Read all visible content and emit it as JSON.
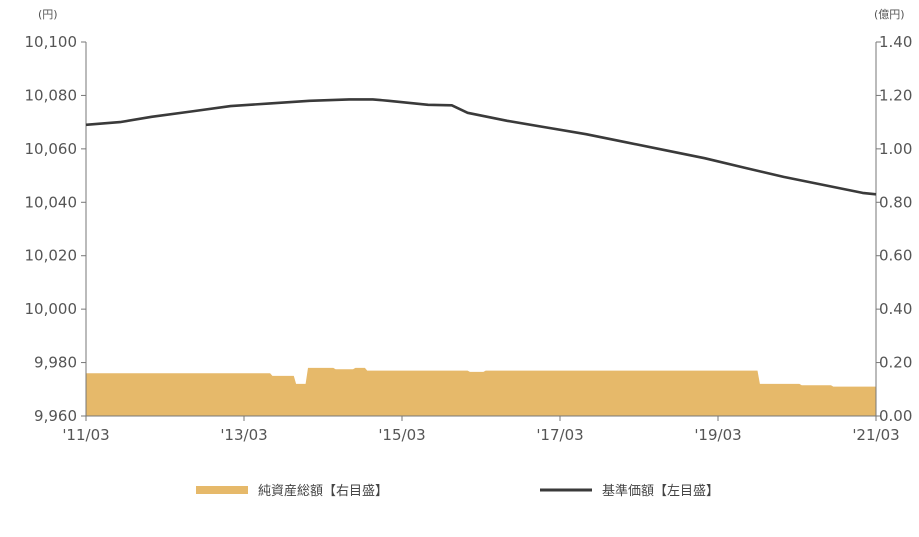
{
  "chart_data": {
    "type": "bar+line",
    "left_axis": {
      "unit": "(円)",
      "ticks": [
        "9,960",
        "9,980",
        "10,000",
        "10,020",
        "10,040",
        "10,060",
        "10,080",
        "10,100"
      ],
      "range": [
        9960,
        10100
      ]
    },
    "right_axis": {
      "unit": "(億円)",
      "ticks": [
        "0.00",
        "0.20",
        "0.40",
        "0.60",
        "0.80",
        "1.00",
        "1.20",
        "1.40"
      ],
      "range": [
        0,
        1.4
      ]
    },
    "x_axis": {
      "ticks": [
        "'11/03",
        "'13/03",
        "'15/03",
        "'17/03",
        "'19/03",
        "'21/03"
      ],
      "range": [
        2011.17,
        2021.17
      ]
    },
    "series": [
      {
        "name": "純資産総額【右目盛】",
        "axis": "right",
        "style": "area",
        "color": "#e6b96a",
        "points": [
          [
            2011.17,
            0.16
          ],
          [
            2011.6,
            0.16
          ],
          [
            2012.0,
            0.16
          ],
          [
            2012.5,
            0.16
          ],
          [
            2013.0,
            0.16
          ],
          [
            2013.5,
            0.16
          ],
          [
            2013.53,
            0.15
          ],
          [
            2013.8,
            0.15
          ],
          [
            2013.83,
            0.12
          ],
          [
            2013.95,
            0.12
          ],
          [
            2013.98,
            0.18
          ],
          [
            2014.3,
            0.18
          ],
          [
            2014.33,
            0.175
          ],
          [
            2014.55,
            0.175
          ],
          [
            2014.58,
            0.18
          ],
          [
            2014.7,
            0.18
          ],
          [
            2014.73,
            0.17
          ],
          [
            2015.5,
            0.17
          ],
          [
            2016.0,
            0.17
          ],
          [
            2016.03,
            0.165
          ],
          [
            2016.2,
            0.165
          ],
          [
            2016.23,
            0.17
          ],
          [
            2017.0,
            0.17
          ],
          [
            2018.0,
            0.17
          ],
          [
            2019.0,
            0.17
          ],
          [
            2019.67,
            0.17
          ],
          [
            2019.7,
            0.12
          ],
          [
            2020.2,
            0.12
          ],
          [
            2020.23,
            0.115
          ],
          [
            2020.6,
            0.115
          ],
          [
            2020.63,
            0.11
          ],
          [
            2021.17,
            0.11
          ]
        ]
      },
      {
        "name": "基準価額【左目盛】",
        "axis": "left",
        "style": "line",
        "color": "#3a3a3a",
        "points": [
          [
            2011.17,
            10069
          ],
          [
            2011.6,
            10070
          ],
          [
            2012.0,
            10072
          ],
          [
            2012.5,
            10074
          ],
          [
            2013.0,
            10076
          ],
          [
            2013.5,
            10077
          ],
          [
            2014.0,
            10078
          ],
          [
            2014.5,
            10078.5
          ],
          [
            2014.8,
            10078.5
          ],
          [
            2015.0,
            10078
          ],
          [
            2015.5,
            10076.5
          ],
          [
            2015.8,
            10076.3
          ],
          [
            2016.0,
            10073.5
          ],
          [
            2016.5,
            10070.5
          ],
          [
            2017.0,
            10068
          ],
          [
            2017.5,
            10065.5
          ],
          [
            2018.0,
            10062.5
          ],
          [
            2018.5,
            10059.5
          ],
          [
            2019.0,
            10056.5
          ],
          [
            2019.5,
            10053
          ],
          [
            2020.0,
            10049.5
          ],
          [
            2020.5,
            10046.5
          ],
          [
            2021.0,
            10043.5
          ],
          [
            2021.17,
            10043
          ]
        ]
      }
    ],
    "legend": [
      {
        "label": "純資産総額【右目盛】",
        "color": "#e6b96a",
        "kind": "bar"
      },
      {
        "label": "基準価額【左目盛】",
        "color": "#3a3a3a",
        "kind": "line"
      }
    ],
    "grid": false
  }
}
